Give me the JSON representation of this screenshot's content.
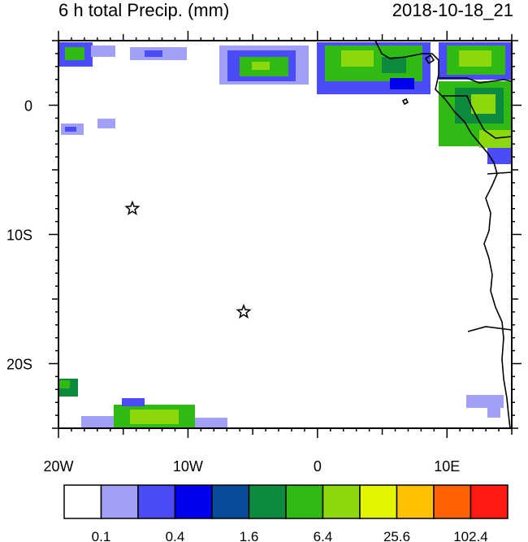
{
  "header": {
    "title": "6 h total Precip. (mm)",
    "datetime": "2018-10-18_21"
  },
  "map": {
    "lon_range": [
      -20,
      15
    ],
    "lat_range": [
      -25,
      5
    ],
    "x_ticks": [
      {
        "lon": -20,
        "label": "20W"
      },
      {
        "lon": -10,
        "label": "10W"
      },
      {
        "lon": 0,
        "label": "0"
      },
      {
        "lon": 10,
        "label": "10E"
      }
    ],
    "y_ticks": [
      {
        "lat": 0,
        "label": "0"
      },
      {
        "lat": -10,
        "label": "10S"
      },
      {
        "lat": -20,
        "label": "20S"
      }
    ],
    "markers": [
      {
        "name": "star-marker-1",
        "lon": -14.3,
        "lat": -8.0,
        "symbol": "star"
      },
      {
        "name": "star-marker-2",
        "lon": -5.7,
        "lat": -16.0,
        "symbol": "star"
      }
    ]
  },
  "colorbar": {
    "colors": [
      "#ffffff",
      "#a0a0f7",
      "#4b4bf7",
      "#0000ee",
      "#074c9a",
      "#0c8a3e",
      "#30ba14",
      "#8cd80c",
      "#e2f400",
      "#ffc200",
      "#ff6100",
      "#ff1a12"
    ],
    "labels": [
      {
        "after_box": 1,
        "text": "0.1"
      },
      {
        "after_box": 3,
        "text": "0.4"
      },
      {
        "after_box": 5,
        "text": "1.6"
      },
      {
        "after_box": 7,
        "text": "6.4"
      },
      {
        "after_box": 9,
        "text": "25.6"
      },
      {
        "after_box": 11,
        "text": "102.4"
      }
    ]
  }
}
